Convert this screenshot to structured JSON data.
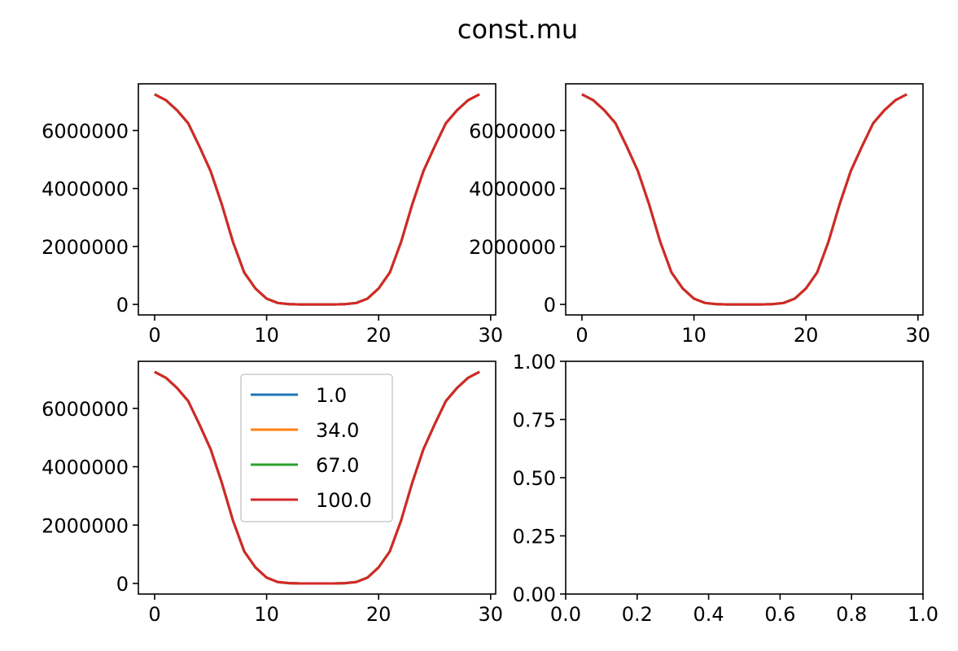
{
  "figure_title": "const.mu",
  "chart_data": [
    {
      "type": "line",
      "x": [
        0,
        1,
        2,
        3,
        4,
        5,
        6,
        7,
        8,
        9,
        10,
        11,
        12,
        13,
        14,
        15,
        16,
        17,
        18,
        19,
        20,
        21,
        22,
        23,
        24,
        25,
        26,
        27,
        28,
        29
      ],
      "series": [
        {
          "name": "1.0",
          "color": "#1f77b4",
          "values": [
            7250000,
            7050000,
            6700000,
            6250000,
            5450000,
            4600000,
            3450000,
            2150000,
            1100000,
            550000,
            200000,
            50000,
            10000,
            0,
            0,
            0,
            0,
            10000,
            50000,
            200000,
            550000,
            1100000,
            2150000,
            3450000,
            4600000,
            5450000,
            6250000,
            6700000,
            7050000,
            7250000
          ]
        },
        {
          "name": "34.0",
          "color": "#ff7f0e",
          "values": [
            7250000,
            7050000,
            6700000,
            6250000,
            5450000,
            4600000,
            3450000,
            2150000,
            1100000,
            550000,
            200000,
            50000,
            10000,
            0,
            0,
            0,
            0,
            10000,
            50000,
            200000,
            550000,
            1100000,
            2150000,
            3450000,
            4600000,
            5450000,
            6250000,
            6700000,
            7050000,
            7250000
          ]
        },
        {
          "name": "67.0",
          "color": "#2ca02c",
          "values": [
            7250000,
            7050000,
            6700000,
            6250000,
            5450000,
            4600000,
            3450000,
            2150000,
            1100000,
            550000,
            200000,
            50000,
            10000,
            0,
            0,
            0,
            0,
            10000,
            50000,
            200000,
            550000,
            1100000,
            2150000,
            3450000,
            4600000,
            5450000,
            6250000,
            6700000,
            7050000,
            7250000
          ]
        },
        {
          "name": "100.0",
          "color": "#d62728",
          "values": [
            7250000,
            7050000,
            6700000,
            6250000,
            5450000,
            4600000,
            3450000,
            2150000,
            1100000,
            550000,
            200000,
            50000,
            10000,
            0,
            0,
            0,
            0,
            10000,
            50000,
            200000,
            550000,
            1100000,
            2150000,
            3450000,
            4600000,
            5450000,
            6250000,
            6700000,
            7050000,
            7250000
          ]
        }
      ],
      "xlim": [
        -1.45,
        30.45
      ],
      "ylim": [
        -362500,
        7612500
      ],
      "xticks": [
        "0",
        "10",
        "20",
        "30"
      ],
      "yticks": [
        "0",
        "2000000",
        "4000000",
        "6000000"
      ],
      "legend": false
    },
    {
      "type": "line",
      "x": [
        0,
        1,
        2,
        3,
        4,
        5,
        6,
        7,
        8,
        9,
        10,
        11,
        12,
        13,
        14,
        15,
        16,
        17,
        18,
        19,
        20,
        21,
        22,
        23,
        24,
        25,
        26,
        27,
        28,
        29
      ],
      "series": [
        {
          "name": "1.0",
          "color": "#1f77b4",
          "values": [
            7250000,
            7050000,
            6700000,
            6250000,
            5450000,
            4600000,
            3450000,
            2150000,
            1100000,
            550000,
            200000,
            50000,
            10000,
            0,
            0,
            0,
            0,
            10000,
            50000,
            200000,
            550000,
            1100000,
            2150000,
            3450000,
            4600000,
            5450000,
            6250000,
            6700000,
            7050000,
            7250000
          ]
        },
        {
          "name": "34.0",
          "color": "#ff7f0e",
          "values": [
            7250000,
            7050000,
            6700000,
            6250000,
            5450000,
            4600000,
            3450000,
            2150000,
            1100000,
            550000,
            200000,
            50000,
            10000,
            0,
            0,
            0,
            0,
            10000,
            50000,
            200000,
            550000,
            1100000,
            2150000,
            3450000,
            4600000,
            5450000,
            6250000,
            6700000,
            7050000,
            7250000
          ]
        },
        {
          "name": "67.0",
          "color": "#2ca02c",
          "values": [
            7250000,
            7050000,
            6700000,
            6250000,
            5450000,
            4600000,
            3450000,
            2150000,
            1100000,
            550000,
            200000,
            50000,
            10000,
            0,
            0,
            0,
            0,
            10000,
            50000,
            200000,
            550000,
            1100000,
            2150000,
            3450000,
            4600000,
            5450000,
            6250000,
            6700000,
            7050000,
            7250000
          ]
        },
        {
          "name": "100.0",
          "color": "#d62728",
          "values": [
            7250000,
            7050000,
            6700000,
            6250000,
            5450000,
            4600000,
            3450000,
            2150000,
            1100000,
            550000,
            200000,
            50000,
            10000,
            0,
            0,
            0,
            0,
            10000,
            50000,
            200000,
            550000,
            1100000,
            2150000,
            3450000,
            4600000,
            5450000,
            6250000,
            6700000,
            7050000,
            7250000
          ]
        }
      ],
      "xlim": [
        -1.45,
        30.45
      ],
      "ylim": [
        -362500,
        7612500
      ],
      "xticks": [
        "0",
        "10",
        "20",
        "30"
      ],
      "yticks": [
        "0",
        "2000000",
        "4000000",
        "6000000"
      ],
      "legend": false
    },
    {
      "type": "line",
      "x": [
        0,
        1,
        2,
        3,
        4,
        5,
        6,
        7,
        8,
        9,
        10,
        11,
        12,
        13,
        14,
        15,
        16,
        17,
        18,
        19,
        20,
        21,
        22,
        23,
        24,
        25,
        26,
        27,
        28,
        29
      ],
      "series": [
        {
          "name": "1.0",
          "color": "#1f77b4",
          "values": [
            7250000,
            7050000,
            6700000,
            6250000,
            5450000,
            4600000,
            3450000,
            2150000,
            1100000,
            550000,
            200000,
            50000,
            10000,
            0,
            0,
            0,
            0,
            10000,
            50000,
            200000,
            550000,
            1100000,
            2150000,
            3450000,
            4600000,
            5450000,
            6250000,
            6700000,
            7050000,
            7250000
          ]
        },
        {
          "name": "34.0",
          "color": "#ff7f0e",
          "values": [
            7250000,
            7050000,
            6700000,
            6250000,
            5450000,
            4600000,
            3450000,
            2150000,
            1100000,
            550000,
            200000,
            50000,
            10000,
            0,
            0,
            0,
            0,
            10000,
            50000,
            200000,
            550000,
            1100000,
            2150000,
            3450000,
            4600000,
            5450000,
            6250000,
            6700000,
            7050000,
            7250000
          ]
        },
        {
          "name": "67.0",
          "color": "#2ca02c",
          "values": [
            7250000,
            7050000,
            6700000,
            6250000,
            5450000,
            4600000,
            3450000,
            2150000,
            1100000,
            550000,
            200000,
            50000,
            10000,
            0,
            0,
            0,
            0,
            10000,
            50000,
            200000,
            550000,
            1100000,
            2150000,
            3450000,
            4600000,
            5450000,
            6250000,
            6700000,
            7050000,
            7250000
          ]
        },
        {
          "name": "100.0",
          "color": "#d62728",
          "values": [
            7250000,
            7050000,
            6700000,
            6250000,
            5450000,
            4600000,
            3450000,
            2150000,
            1100000,
            550000,
            200000,
            50000,
            10000,
            0,
            0,
            0,
            0,
            10000,
            50000,
            200000,
            550000,
            1100000,
            2150000,
            3450000,
            4600000,
            5450000,
            6250000,
            6700000,
            7050000,
            7250000
          ]
        }
      ],
      "xlim": [
        -1.45,
        30.45
      ],
      "ylim": [
        -362500,
        7612500
      ],
      "xticks": [
        "0",
        "10",
        "20",
        "30"
      ],
      "yticks": [
        "0",
        "2000000",
        "4000000",
        "6000000"
      ],
      "legend": true,
      "legend_position": "upper-center"
    },
    {
      "type": "line",
      "x": [],
      "series": [],
      "xlim": [
        0,
        1
      ],
      "ylim": [
        0,
        1
      ],
      "xticks": [
        "0.0",
        "0.2",
        "0.4",
        "0.6",
        "0.8",
        "1.0"
      ],
      "yticks": [
        "0.00",
        "0.25",
        "0.50",
        "0.75",
        "1.00"
      ],
      "legend": false
    }
  ]
}
